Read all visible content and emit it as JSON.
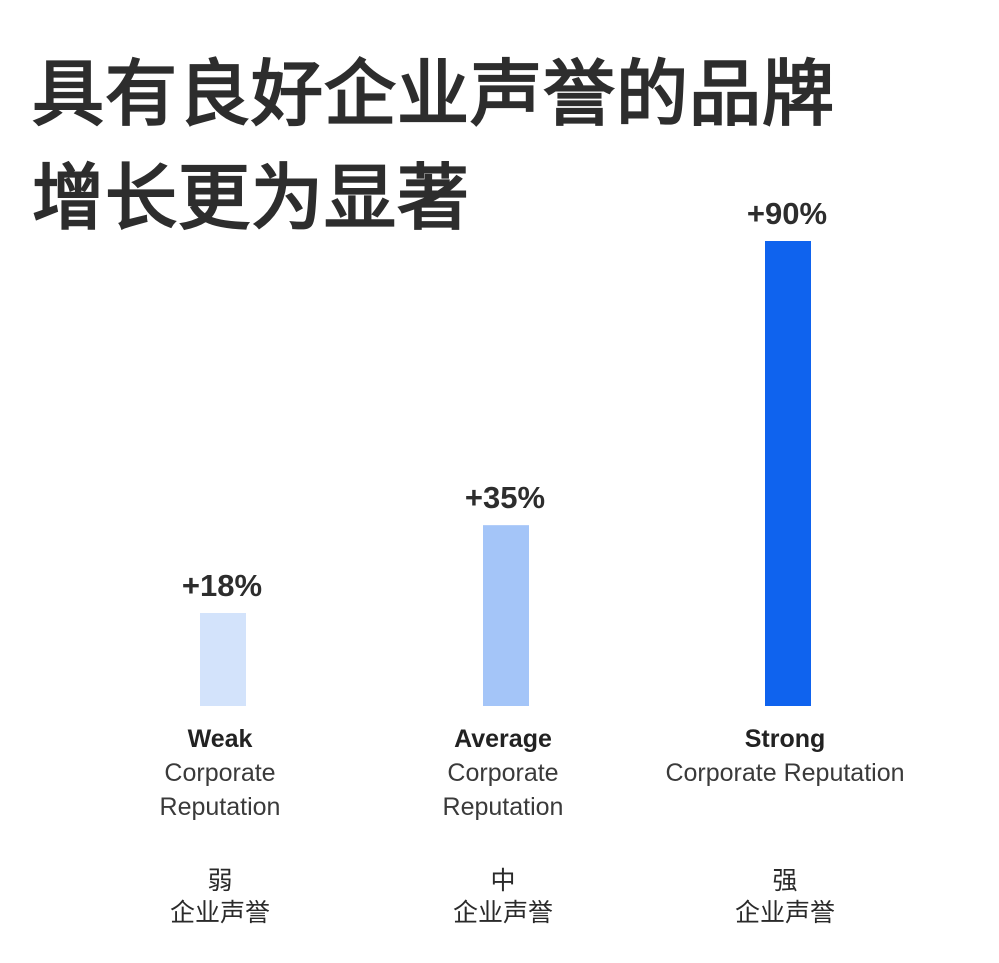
{
  "title_lines": [
    "具有良好企业声誉的品牌",
    "增长更为显著"
  ],
  "chart_data": {
    "type": "bar",
    "title": "具有良好企业声誉的品牌增长更为显著",
    "categories": [
      {
        "key": "weak",
        "level": "Weak",
        "en_lines": [
          "Corporate",
          "Reputation"
        ],
        "cn_level": "弱",
        "cn_label": "企业声誉",
        "value": 18,
        "value_label": "+18%",
        "color": "#d3e3fb"
      },
      {
        "key": "average",
        "level": "Average",
        "en_lines": [
          "Corporate",
          "Reputation"
        ],
        "cn_level": "中",
        "cn_label": "企业声誉",
        "value": 35,
        "value_label": "+35%",
        "color": "#a4c5f8"
      },
      {
        "key": "strong",
        "level": "Strong",
        "en_lines": [
          "Corporate Reputation"
        ],
        "cn_level": "强",
        "cn_label": "企业声誉",
        "value": 90,
        "value_label": "+90%",
        "color": "#0f63ee"
      }
    ],
    "values": [
      18,
      35,
      90
    ],
    "unit": "%",
    "ylim": [
      0,
      90
    ],
    "grid": false,
    "legend": "none"
  }
}
